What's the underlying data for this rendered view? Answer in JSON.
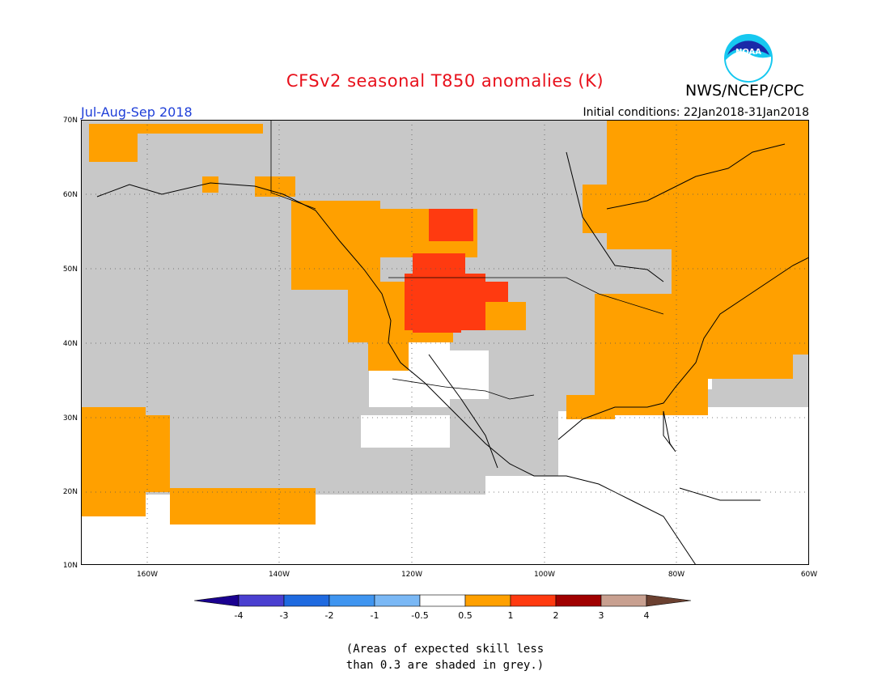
{
  "header": {
    "title": "CFSv2 seasonal T850 anomalies (K)",
    "period": "Jul-Aug-Sep 2018",
    "initial_conditions": "Initial conditions: 22Jan2018-31Jan2018",
    "agency": "NWS/NCEP/CPC",
    "logo_text": "NOAA"
  },
  "axes": {
    "lat_labels": [
      "70N",
      "60N",
      "50N",
      "40N",
      "30N",
      "20N",
      "10N"
    ],
    "lon_labels": [
      "160W",
      "140W",
      "120W",
      "100W",
      "80W",
      "60W"
    ],
    "lat_range": [
      10,
      70
    ],
    "lon_range": [
      -170,
      -60
    ]
  },
  "legend": {
    "ticks": [
      "-4",
      "-3",
      "-2",
      "-1",
      "-0.5",
      "0.5",
      "1",
      "2",
      "3",
      "4"
    ],
    "colors": [
      "#1a0090",
      "#4a3fd0",
      "#1f6ae0",
      "#3f95f0",
      "#7ab8f5",
      "#ffffff",
      "#ffa000",
      "#ff3a10",
      "#a00000",
      "#c8a090",
      "#6b4030"
    ]
  },
  "note": {
    "line1": "(Areas of expected skill less",
    "line2": "than 0.3 are shaded in grey.)"
  },
  "colors": {
    "no_skill_grey": "#c8c8c8",
    "anom_0_5_to_1": "#ffa000",
    "anom_1_to_2": "#ff3a10",
    "title_red": "#e8101b",
    "period_blue": "#1f3fd8"
  }
}
